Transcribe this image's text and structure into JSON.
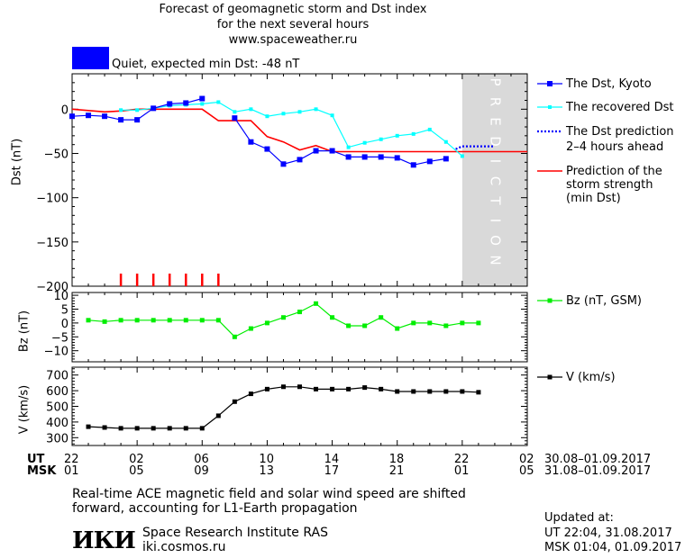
{
  "header": {
    "title_lines": [
      "Forecast of geomagnetic storm and Dst index",
      "for the next several hours",
      "www.spaceweather.ru"
    ],
    "status_text": "Quiet, expected min Dst: -48 nT",
    "status_color": "#0000ff"
  },
  "prediction_band_label": "PREDICTION",
  "legend": {
    "dst_kyoto": "The Dst, Kyoto",
    "dst_recovered": "The recovered Dst",
    "dst_pred_line1": "The Dst prediction",
    "dst_pred_line2": "2–4 hours ahead",
    "storm_line1": "Prediction of the",
    "storm_line2": "storm strength",
    "storm_line3": "(min Dst)",
    "bz": "Bz (nT, GSM)",
    "v": "V (km/s)"
  },
  "axes": {
    "dst_ylabel": "Dst (nT)",
    "bz_ylabel": "Bz (nT)",
    "v_ylabel": "V (km/s)",
    "ut_label": "UT",
    "msk_label": "MSK",
    "ut_ticks": [
      "22",
      "02",
      "06",
      "10",
      "14",
      "18",
      "22",
      "02"
    ],
    "msk_ticks": [
      "01",
      "05",
      "09",
      "13",
      "17",
      "21",
      "01",
      "05"
    ],
    "ut_range": "30.08–01.09.2017",
    "msk_range": "31.08–01.09.2017"
  },
  "footer": {
    "note_line1": "Real-time ACE magnetic field and solar wind speed are shifted",
    "note_line2": "forward, accounting for L1-Earth propagation",
    "logo_text": "ИКИ",
    "institute": "Space Research Institute RAS",
    "site": "iki.cosmos.ru",
    "updated_label": "Updated at:",
    "updated_ut": "UT   22:04, 31.08.2017",
    "updated_msk": "MSK 01:04, 01.09.2017"
  },
  "chart_data": [
    {
      "type": "line",
      "panel": "dst",
      "ylabel": "Dst (nT)",
      "ylim": [
        -200,
        40
      ],
      "yticks": [
        0,
        -50,
        -100,
        -150,
        -200
      ],
      "x_unit": "hours (UT) from 22:00 30.08.2017",
      "xlim": [
        0,
        28
      ],
      "prediction_band": [
        24,
        28
      ],
      "colors": {
        "kyoto": "#0000ff",
        "recovered": "#00ffff",
        "prediction": "#0000ff",
        "storm": "#ff0000",
        "band": "#d9d9d9"
      },
      "series": [
        {
          "name": "The Dst, Kyoto",
          "x": [
            0,
            1,
            2,
            3,
            4,
            5,
            6,
            7,
            8,
            9,
            10,
            11,
            12,
            13,
            14,
            15,
            16,
            17,
            18,
            19,
            20,
            21,
            22,
            23
          ],
          "y": [
            -8,
            -7,
            -8,
            -12,
            -12,
            1,
            6,
            7,
            12,
            null,
            -10,
            -37,
            -45,
            -62,
            -57,
            -47,
            -47,
            -54,
            -54,
            -54,
            -55,
            -63,
            -59,
            -56
          ]
        },
        {
          "name": "The recovered Dst",
          "x": [
            3,
            4,
            5,
            6,
            7,
            8,
            9,
            10,
            11,
            12,
            13,
            14,
            15,
            16,
            17,
            18,
            19,
            20,
            21,
            22,
            23,
            24
          ],
          "y": [
            -1,
            -1,
            1,
            4,
            5,
            6,
            8,
            -3,
            0,
            -8,
            -5,
            -3,
            0,
            -7,
            -43,
            -38,
            -34,
            -30,
            -28,
            -23,
            -37,
            -53
          ]
        },
        {
          "name": "The Dst prediction 2-4 hours ahead",
          "x": [
            23.6,
            24,
            25,
            26
          ],
          "y": [
            -45,
            -42,
            -42,
            -42
          ]
        },
        {
          "name": "Prediction of the storm strength (min Dst)",
          "x": [
            0,
            2,
            3,
            4,
            5,
            6,
            7,
            8,
            9,
            10,
            11,
            12,
            13,
            14,
            15,
            16,
            17,
            18,
            19,
            20,
            21,
            22,
            23,
            24,
            25,
            26,
            27,
            28
          ],
          "y": [
            0,
            -3,
            -2,
            0,
            0,
            0,
            0,
            0,
            -13,
            -13,
            -13,
            -31,
            -37,
            -46,
            -41,
            -48,
            -48,
            -48,
            -48,
            -48,
            -48,
            -48,
            -48,
            -48,
            -48,
            -48,
            -48,
            -48
          ]
        }
      ],
      "storm_markers_x": [
        3,
        4,
        5,
        6,
        7,
        8,
        9
      ]
    },
    {
      "type": "line",
      "panel": "bz",
      "ylabel": "Bz (nT)",
      "ylim": [
        -14,
        11
      ],
      "yticks": [
        10,
        5,
        0,
        -5,
        -10
      ],
      "xlim": [
        0,
        28
      ],
      "color": "#00ee00",
      "series": [
        {
          "name": "Bz (nT, GSM)",
          "x": [
            1,
            2,
            3,
            4,
            5,
            6,
            7,
            8,
            9,
            10,
            11,
            12,
            13,
            14,
            15,
            16,
            17,
            18,
            19,
            20,
            21,
            22,
            23,
            24,
            25
          ],
          "y": [
            1,
            0.5,
            1,
            1,
            1,
            1,
            1,
            1,
            1,
            -5,
            -2,
            0,
            2,
            4,
            7,
            2,
            -1,
            -1,
            2,
            -2,
            0,
            0,
            -1,
            0,
            0
          ]
        }
      ]
    },
    {
      "type": "line",
      "panel": "v",
      "ylabel": "V (km/s)",
      "ylim": [
        250,
        750
      ],
      "yticks": [
        700,
        600,
        500,
        400,
        300
      ],
      "xlim": [
        0,
        28
      ],
      "color": "#000000",
      "series": [
        {
          "name": "V (km/s)",
          "x": [
            1,
            2,
            3,
            4,
            5,
            6,
            7,
            8,
            9,
            10,
            11,
            12,
            13,
            14,
            15,
            16,
            17,
            18,
            19,
            20,
            21,
            22,
            23,
            24,
            25
          ],
          "y": [
            370,
            365,
            360,
            360,
            360,
            360,
            360,
            360,
            440,
            530,
            580,
            610,
            625,
            625,
            610,
            610,
            610,
            620,
            610,
            595,
            595,
            595,
            595,
            595,
            590
          ]
        }
      ]
    }
  ]
}
